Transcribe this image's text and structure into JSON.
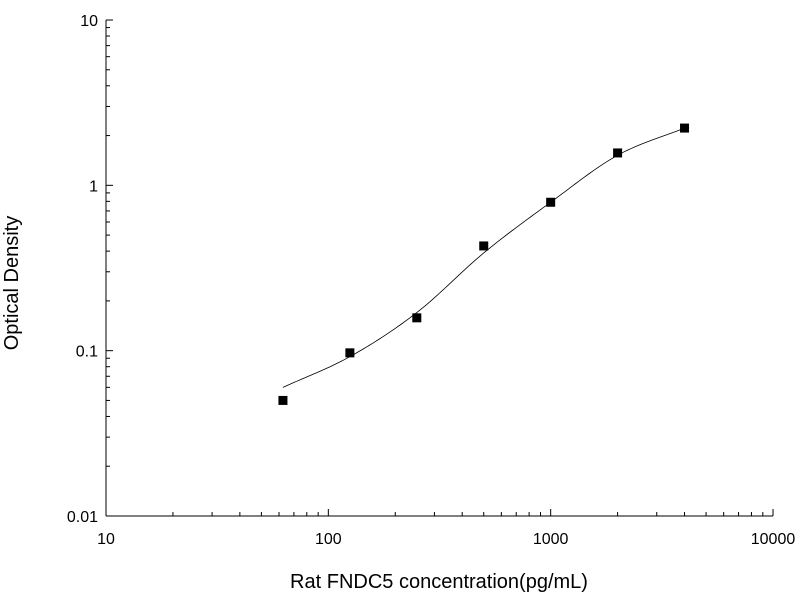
{
  "chart_data": {
    "type": "scatter",
    "title": "",
    "xlabel": "Rat FNDC5 concentration(pg/mL)",
    "ylabel": "Optical Density",
    "xscale": "log",
    "yscale": "log",
    "xlim": [
      10,
      10000
    ],
    "ylim": [
      0.01,
      10
    ],
    "x_ticks": [
      10,
      100,
      1000,
      10000
    ],
    "x_tick_labels": [
      "10",
      "100",
      "1000",
      "10000"
    ],
    "y_ticks": [
      0.01,
      0.1,
      1,
      10
    ],
    "y_tick_labels": [
      "0.01",
      "0.1",
      "1",
      "10"
    ],
    "grid": false,
    "legend": "none",
    "marker_color": "#000000",
    "series": [
      {
        "kind": "points",
        "marker": "square",
        "x": [
          62.5,
          125,
          250,
          500,
          1000,
          2000,
          4000
        ],
        "y": [
          0.05,
          0.097,
          0.158,
          0.43,
          0.79,
          1.57,
          2.22
        ]
      },
      {
        "kind": "fitted-curve",
        "x": [
          62.5,
          125,
          250,
          500,
          1000,
          2000,
          4000
        ],
        "y": [
          0.06,
          0.092,
          0.17,
          0.39,
          0.79,
          1.52,
          2.22
        ]
      }
    ]
  }
}
